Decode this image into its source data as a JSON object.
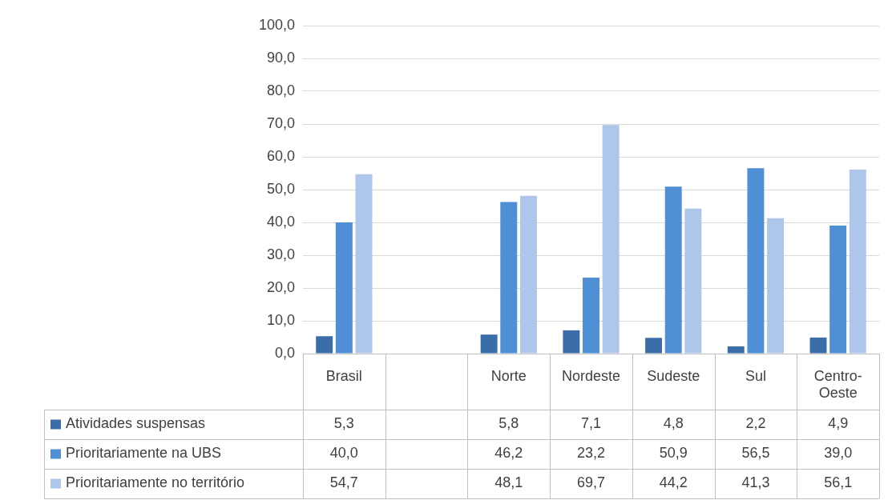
{
  "chart_data": {
    "type": "bar",
    "categories": [
      "Brasil",
      null,
      "Norte",
      "Nordeste",
      "Sudeste",
      "Sul",
      "Centro-Oeste"
    ],
    "series": [
      {
        "name": "Atividades suspensas",
        "color": "#3b6ea8",
        "values": [
          5.3,
          null,
          5.8,
          7.1,
          4.8,
          2.2,
          4.9
        ],
        "value_labels": [
          "5,3",
          null,
          "5,8",
          "7,1",
          "4,8",
          "2,2",
          "4,9"
        ]
      },
      {
        "name": "Prioritariamente na UBS",
        "color": "#4f8fd6",
        "values": [
          40.0,
          null,
          46.2,
          23.2,
          50.9,
          56.5,
          39.0
        ],
        "value_labels": [
          "40,0",
          null,
          "46,2",
          "23,2",
          "50,9",
          "56,5",
          "39,0"
        ]
      },
      {
        "name": "Prioritariamente no território",
        "color": "#adc6ea",
        "values": [
          54.7,
          null,
          48.1,
          69.7,
          44.2,
          41.3,
          56.1
        ],
        "value_labels": [
          "54,7",
          null,
          "48,1",
          "69,7",
          "44,2",
          "41,3",
          "56,1"
        ]
      }
    ],
    "ylim": [
      0,
      100
    ],
    "yticks": [
      {
        "value": 0,
        "label": "0,0"
      },
      {
        "value": 10,
        "label": "10,0"
      },
      {
        "value": 20,
        "label": "20,0"
      },
      {
        "value": 30,
        "label": "30,0"
      },
      {
        "value": 40,
        "label": "40,0"
      },
      {
        "value": 50,
        "label": "50,0"
      },
      {
        "value": 60,
        "label": "60,0"
      },
      {
        "value": 70,
        "label": "70,0"
      },
      {
        "value": 80,
        "label": "80,0"
      },
      {
        "value": 90,
        "label": "90,0"
      },
      {
        "value": 100,
        "label": "100,0"
      }
    ],
    "grid": "y",
    "legend": "bottom"
  }
}
